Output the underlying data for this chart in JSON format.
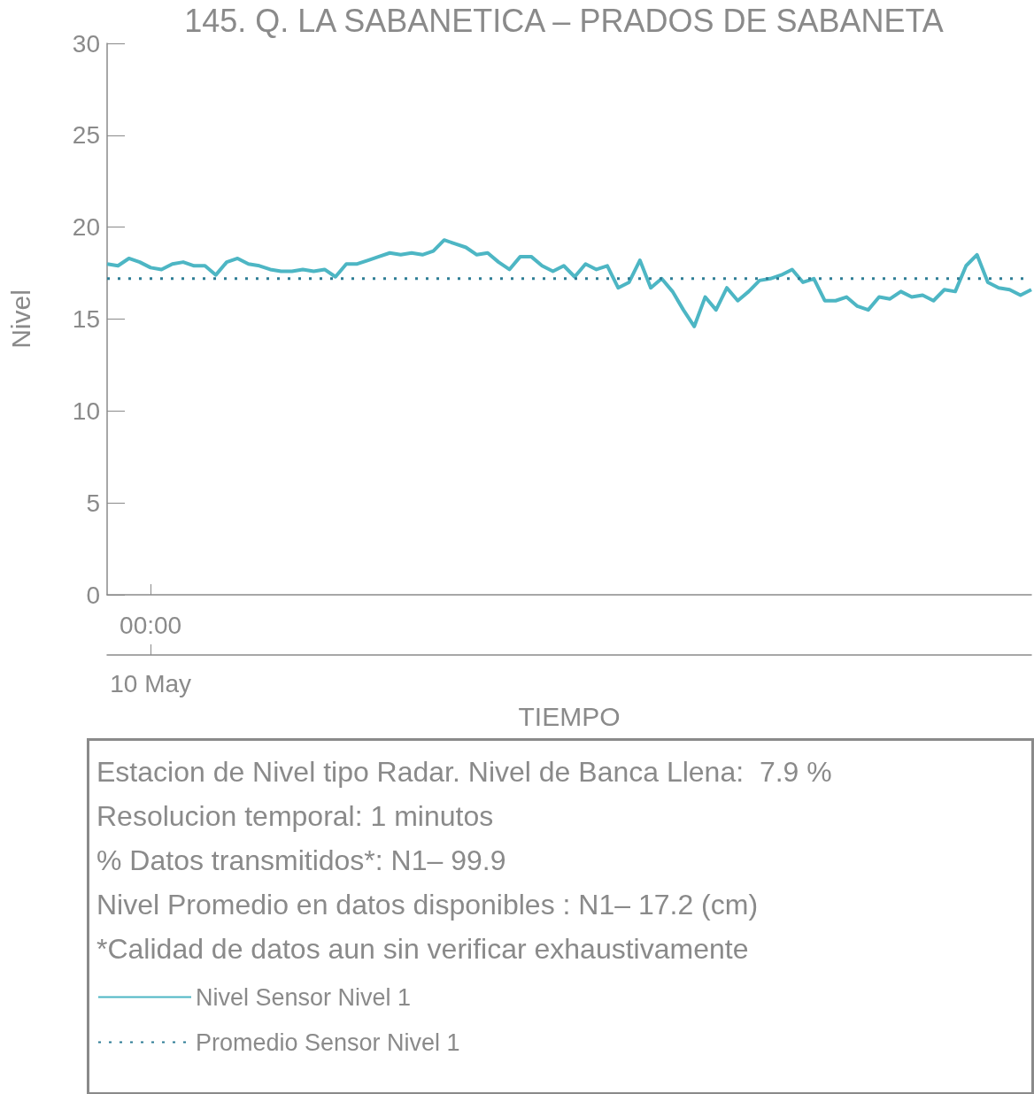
{
  "chart_data": {
    "type": "line",
    "title": "145. Q. LA SABANETICA – PRADOS DE SABANETA",
    "xlabel": "TIEMPO",
    "ylabel": "Nivel",
    "categories": [
      null,
      null,
      null,
      null,
      "00:00",
      null,
      null,
      null,
      null,
      null,
      null,
      null,
      null,
      null,
      null,
      null,
      null,
      null,
      null,
      null,
      null,
      null,
      null,
      null,
      null,
      null,
      null,
      null,
      null,
      null,
      null,
      null,
      null,
      null,
      null,
      null,
      null,
      null,
      null,
      null,
      null,
      null,
      null,
      null,
      null,
      null,
      null,
      null,
      null,
      null,
      null,
      null,
      null,
      null,
      null,
      null,
      null,
      null,
      null,
      null,
      null,
      null,
      null,
      null,
      null,
      null,
      null,
      null,
      null,
      null,
      null,
      null,
      null,
      null,
      null,
      null,
      null,
      null,
      null,
      null,
      null,
      null,
      null,
      null,
      null,
      null
    ],
    "ylim": [
      0,
      30
    ],
    "yticks": [
      0,
      5,
      10,
      15,
      20,
      25,
      30
    ],
    "grid": false,
    "legend": "bottom",
    "marker": "none",
    "annotations": [
      {
        "text": "10 May",
        "x": "00:00"
      },
      "Estacion de Nivel tipo Radar. Nivel de Banca Llena:  7.9 %",
      "Resolucion temporal: 1 minutos",
      "% Datos transmitidos*: N1– 99.9",
      "Nivel Promedio en datos disponibles : N1– 17.2 (cm)",
      "*Calidad de datos aun sin verificar exhaustivamente"
    ],
    "series": [
      {
        "name": "Nivel Sensor Nivel 1",
        "color": "#4db6c4",
        "line_style": "solid",
        "values": [
          18.0,
          17.9,
          18.3,
          18.1,
          17.8,
          17.7,
          18.0,
          18.1,
          17.9,
          17.9,
          17.4,
          18.1,
          18.3,
          18.0,
          17.9,
          17.7,
          17.6,
          17.6,
          17.7,
          17.6,
          17.7,
          17.3,
          18.0,
          18.0,
          18.2,
          18.4,
          18.6,
          18.5,
          18.6,
          18.5,
          18.7,
          19.3,
          19.1,
          18.9,
          18.5,
          18.6,
          18.1,
          17.7,
          18.4,
          18.4,
          17.9,
          17.6,
          17.9,
          17.3,
          18.0,
          17.7,
          17.9,
          16.7,
          17.0,
          18.2,
          16.7,
          17.2,
          16.5,
          15.5,
          14.6,
          16.2,
          15.5,
          16.7,
          16.0,
          16.5,
          17.1,
          17.2,
          17.4,
          17.7,
          17.0,
          17.2,
          16.0,
          16.0,
          16.2,
          15.7,
          15.5,
          16.2,
          16.1,
          16.5,
          16.2,
          16.3,
          16.0,
          16.6,
          16.5,
          17.9,
          18.5,
          17.0,
          16.7,
          16.6,
          16.3,
          16.6
        ]
      },
      {
        "name": "Promedio Sensor Nivel 1",
        "color": "#2e7d95",
        "line_style": "dotted",
        "values": [
          17.2,
          17.2,
          17.2,
          17.2,
          17.2,
          17.2,
          17.2,
          17.2,
          17.2,
          17.2,
          17.2,
          17.2,
          17.2,
          17.2,
          17.2,
          17.2,
          17.2,
          17.2,
          17.2,
          17.2,
          17.2,
          17.2,
          17.2,
          17.2,
          17.2,
          17.2,
          17.2,
          17.2,
          17.2,
          17.2,
          17.2,
          17.2,
          17.2,
          17.2,
          17.2,
          17.2,
          17.2,
          17.2,
          17.2,
          17.2,
          17.2,
          17.2,
          17.2,
          17.2,
          17.2,
          17.2,
          17.2,
          17.2,
          17.2,
          17.2,
          17.2,
          17.2,
          17.2,
          17.2,
          17.2,
          17.2,
          17.2,
          17.2,
          17.2,
          17.2,
          17.2,
          17.2,
          17.2,
          17.2,
          17.2,
          17.2,
          17.2,
          17.2,
          17.2,
          17.2,
          17.2,
          17.2,
          17.2,
          17.2,
          17.2,
          17.2,
          17.2,
          17.2,
          17.2,
          17.2,
          17.2,
          17.2,
          17.2,
          17.2,
          17.2,
          17.2
        ]
      }
    ]
  }
}
